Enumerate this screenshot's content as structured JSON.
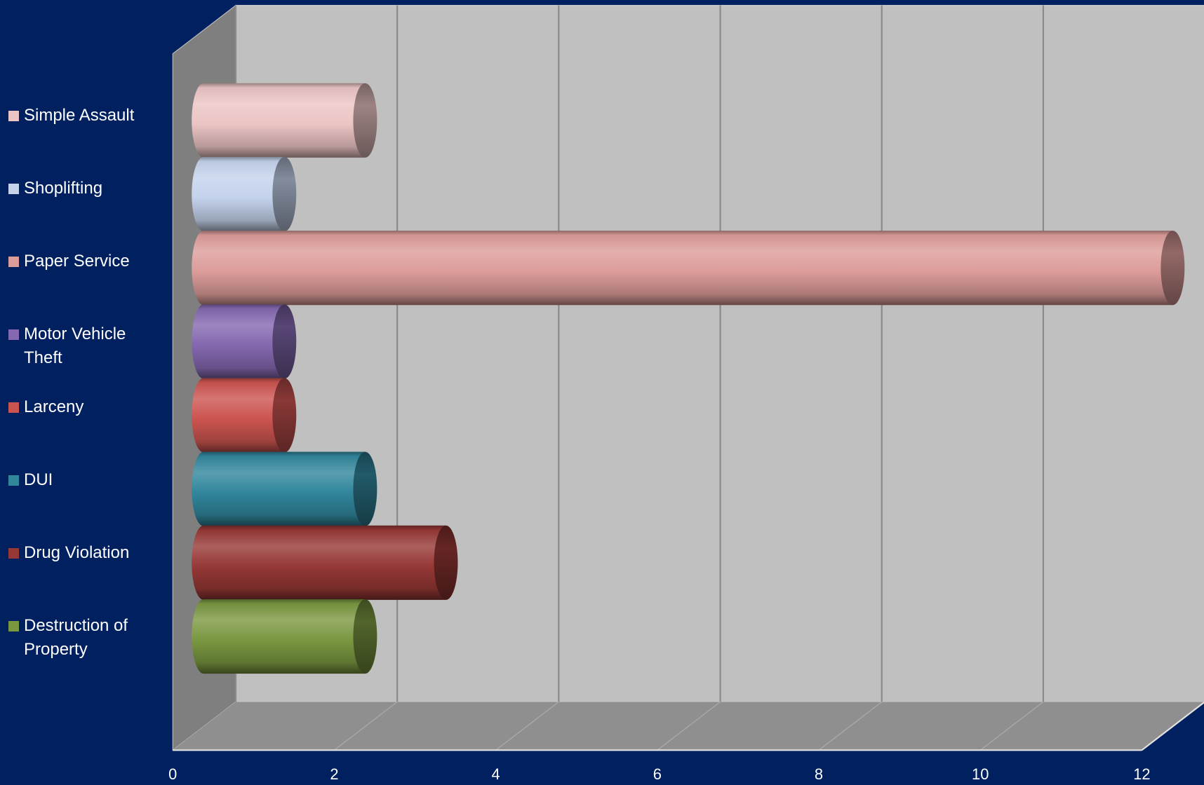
{
  "chart_data": {
    "type": "bar",
    "orientation": "horizontal",
    "bar_shape": "cylinder",
    "three_d": true,
    "xlim": [
      0,
      12
    ],
    "xticks": [
      0,
      2,
      4,
      6,
      8,
      10,
      12
    ],
    "grid": true,
    "legend_position": "left",
    "series": [
      {
        "name": "Simple Assault",
        "value": 2,
        "color": "#ecc4c4"
      },
      {
        "name": "Shoplifting",
        "value": 1,
        "color": "#c4d2ec"
      },
      {
        "name": "Paper Service",
        "value": 12,
        "color": "#dc9c9a"
      },
      {
        "name": "Motor Vehicle Theft",
        "value": 1,
        "color": "#8468b0"
      },
      {
        "name": "Larceny",
        "value": 1,
        "color": "#cc5450"
      },
      {
        "name": "DUI",
        "value": 2,
        "color": "#31869c"
      },
      {
        "name": "Drug Violation",
        "value": 3,
        "color": "#963836"
      },
      {
        "name": "Destruction of Property",
        "value": 2,
        "color": "#7a9740"
      }
    ]
  },
  "colors": {
    "background": "#002060",
    "back_wall": "#c0c0c0",
    "side_wall": "#7f7f7f",
    "floor": "#8f8f8f",
    "text": "#ffffff"
  }
}
